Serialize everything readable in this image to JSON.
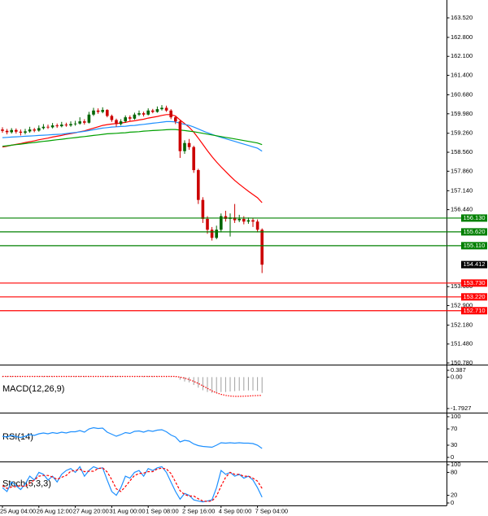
{
  "chart_data": [
    {
      "type": "candlestick",
      "categories": [
        "25 Aug 04:00",
        null,
        null,
        null,
        null,
        null,
        null,
        null,
        "26 Aug 12:00",
        null,
        null,
        null,
        null,
        null,
        null,
        null,
        "27 Aug 20:00",
        null,
        null,
        null,
        null,
        null,
        null,
        null,
        "31 Aug 00:00",
        null,
        null,
        null,
        null,
        null,
        null,
        null,
        "1 Sep 08:00",
        null,
        null,
        null,
        null,
        null,
        null,
        null,
        "2 Sep 16:00",
        null,
        null,
        null,
        null,
        null,
        null,
        null,
        "4 Sep 00:00",
        null,
        null,
        null,
        null,
        null,
        null,
        null,
        "7 Sep 04:00",
        null
      ],
      "open": [
        159.4,
        159.35,
        159.3,
        159.38,
        159.32,
        159.28,
        159.33,
        159.4,
        159.36,
        159.45,
        159.5,
        159.48,
        159.55,
        159.52,
        159.58,
        159.55,
        159.6,
        159.62,
        159.7,
        159.65,
        159.95,
        160.1,
        160.05,
        160.12,
        159.9,
        159.75,
        159.6,
        159.7,
        159.85,
        159.8,
        159.95,
        160.0,
        159.95,
        160.1,
        160.05,
        160.15,
        160.2,
        160.1,
        159.85,
        159.7,
        158.6,
        158.9,
        158.75,
        157.9,
        156.8,
        156.1,
        155.7,
        155.4,
        155.7,
        156.2,
        156.1,
        156.15,
        156.05,
        156.1,
        156.0,
        156.05,
        156.0,
        155.7
      ],
      "high": [
        159.48,
        159.42,
        159.45,
        159.44,
        159.4,
        159.42,
        159.5,
        159.46,
        159.55,
        159.6,
        159.58,
        159.64,
        159.62,
        159.68,
        159.65,
        159.7,
        159.72,
        159.85,
        159.78,
        160.05,
        160.2,
        160.18,
        160.22,
        160.15,
        159.95,
        159.8,
        159.78,
        159.92,
        159.92,
        160.02,
        160.1,
        160.06,
        160.18,
        160.16,
        160.25,
        160.3,
        160.28,
        160.15,
        159.9,
        159.75,
        159.0,
        159.05,
        158.8,
        157.95,
        156.9,
        156.2,
        155.8,
        155.85,
        156.3,
        156.4,
        156.3,
        156.65,
        156.25,
        156.2,
        156.15,
        156.12,
        156.08,
        155.75
      ],
      "low": [
        159.28,
        159.22,
        159.25,
        159.25,
        159.18,
        159.22,
        159.28,
        159.3,
        159.32,
        159.4,
        159.42,
        159.44,
        159.46,
        159.48,
        159.5,
        159.5,
        159.54,
        159.58,
        159.58,
        159.62,
        159.9,
        159.98,
        160.0,
        159.85,
        159.68,
        159.5,
        159.55,
        159.65,
        159.72,
        159.76,
        159.9,
        159.88,
        159.92,
        160.0,
        160.02,
        160.1,
        160.05,
        159.78,
        159.6,
        158.35,
        158.5,
        158.65,
        157.8,
        156.65,
        155.95,
        155.55,
        155.3,
        155.35,
        155.6,
        156.0,
        155.45,
        155.95,
        155.98,
        155.9,
        155.92,
        155.8,
        155.6,
        154.1
      ],
      "close": [
        159.35,
        159.3,
        159.38,
        159.32,
        159.28,
        159.33,
        159.4,
        159.36,
        159.45,
        159.5,
        159.48,
        159.55,
        159.52,
        159.58,
        159.55,
        159.6,
        159.62,
        159.7,
        159.65,
        159.95,
        160.1,
        160.05,
        160.12,
        159.9,
        159.75,
        159.6,
        159.7,
        159.85,
        159.8,
        159.95,
        160.0,
        159.95,
        160.1,
        160.05,
        160.15,
        160.2,
        160.1,
        159.85,
        159.7,
        158.6,
        158.9,
        158.75,
        157.9,
        156.8,
        156.1,
        155.7,
        155.4,
        155.7,
        156.2,
        156.1,
        156.15,
        156.05,
        156.1,
        156.0,
        156.05,
        156.0,
        155.7,
        154.41
      ],
      "up_color": "#006400",
      "down_color": "#cc0000",
      "series": [
        {
          "color": "#ff0000",
          "values": [
            158.75,
            158.78,
            158.82,
            158.85,
            158.88,
            158.92,
            158.95,
            158.98,
            159.02,
            159.05,
            159.08,
            159.12,
            159.15,
            159.18,
            159.22,
            159.25,
            159.28,
            159.32,
            159.35,
            159.4,
            159.45,
            159.5,
            159.55,
            159.58,
            159.6,
            159.62,
            159.64,
            159.66,
            159.7,
            159.72,
            159.75,
            159.78,
            159.82,
            159.85,
            159.88,
            159.92,
            159.95,
            159.95,
            159.9,
            159.75,
            159.62,
            159.48,
            159.3,
            159.08,
            158.85,
            158.62,
            158.4,
            158.2,
            158.02,
            157.85,
            157.68,
            157.52,
            157.38,
            157.25,
            157.12,
            157.0,
            156.88,
            156.7
          ]
        },
        {
          "color": "#1e90ff",
          "values": [
            159.1,
            159.11,
            159.12,
            159.13,
            159.14,
            159.15,
            159.16,
            159.17,
            159.18,
            159.19,
            159.2,
            159.21,
            159.22,
            159.23,
            159.25,
            159.27,
            159.29,
            159.31,
            159.33,
            159.36,
            159.39,
            159.42,
            159.45,
            159.47,
            159.49,
            159.5,
            159.51,
            159.52,
            159.54,
            159.55,
            159.57,
            159.59,
            159.61,
            159.63,
            159.65,
            159.67,
            159.69,
            159.69,
            159.68,
            159.63,
            159.59,
            159.55,
            159.49,
            159.42,
            159.35,
            159.28,
            159.22,
            159.16,
            159.11,
            159.06,
            159.01,
            158.96,
            158.91,
            158.86,
            158.81,
            158.76,
            158.71,
            158.6
          ]
        },
        {
          "color": "#00a000",
          "values": [
            158.78,
            158.8,
            158.82,
            158.84,
            158.86,
            158.88,
            158.9,
            158.92,
            158.94,
            158.96,
            158.98,
            159.0,
            159.02,
            159.04,
            159.06,
            159.08,
            159.1,
            159.12,
            159.14,
            159.16,
            159.18,
            159.2,
            159.22,
            159.24,
            159.25,
            159.26,
            159.27,
            159.28,
            159.3,
            159.31,
            159.32,
            159.34,
            159.35,
            159.36,
            159.37,
            159.38,
            159.39,
            159.4,
            159.4,
            159.38,
            159.36,
            159.34,
            159.32,
            159.29,
            159.26,
            159.23,
            159.2,
            159.17,
            159.14,
            159.11,
            159.08,
            159.05,
            159.02,
            158.99,
            158.96,
            158.93,
            158.9,
            158.84
          ]
        }
      ],
      "levels": [
        {
          "value": 156.13,
          "label": "156.130",
          "color": "#008000"
        },
        {
          "value": 155.62,
          "label": "155.620",
          "color": "#008000"
        },
        {
          "value": 155.11,
          "label": "155.110",
          "color": "#008000"
        },
        {
          "value": 153.73,
          "label": "153.730",
          "color": "#ff0000"
        },
        {
          "value": 153.22,
          "label": "153.220",
          "color": "#ff0000"
        },
        {
          "value": 152.71,
          "label": "152.710",
          "color": "#ff0000"
        }
      ],
      "last_price": 154.412,
      "last_price_color": "#000000",
      "ylim": [
        150.72,
        164.12
      ],
      "yticks": [
        {
          "value": 163.52,
          "label": "163.520"
        },
        {
          "value": 162.8,
          "label": "162.800"
        },
        {
          "value": 162.1,
          "label": "162.100"
        },
        {
          "value": 161.4,
          "label": "161.400"
        },
        {
          "value": 160.68,
          "label": "160.680"
        },
        {
          "value": 159.98,
          "label": "159.980"
        },
        {
          "value": 159.26,
          "label": "159.260"
        },
        {
          "value": 158.56,
          "label": "158.560"
        },
        {
          "value": 157.86,
          "label": "157.860"
        },
        {
          "value": 157.14,
          "label": "157.140"
        },
        {
          "value": 156.44,
          "label": "156.440"
        },
        {
          "value": 153.6,
          "label": "153.600"
        },
        {
          "value": 152.9,
          "label": "152.900"
        },
        {
          "value": 152.18,
          "label": "152.180"
        },
        {
          "value": 151.48,
          "label": "151.480"
        },
        {
          "value": 150.78,
          "label": "150.780"
        }
      ]
    },
    {
      "type": "macd",
      "title": "MACD(12,26,9)",
      "values": [
        0.05,
        0.05,
        0.05,
        0.05,
        0.05,
        0.05,
        0.05,
        0.05,
        0.05,
        0.05,
        0.05,
        0.05,
        0.05,
        0.05,
        0.05,
        0.05,
        0.05,
        0.05,
        0.05,
        0.05,
        0.05,
        0.05,
        0.05,
        0.05,
        0.05,
        0.05,
        0.05,
        0.05,
        0.05,
        0.05,
        0.05,
        0.05,
        0.05,
        0.05,
        0.05,
        0.05,
        0.05,
        0.05,
        0.03,
        -0.15,
        -0.25,
        -0.3,
        -0.45,
        -0.6,
        -0.75,
        -0.85,
        -0.9,
        -0.9,
        -0.85,
        -0.85,
        -0.82,
        -0.8,
        -0.78,
        -0.77,
        -0.76,
        -0.76,
        -0.78,
        -0.9
      ],
      "hist_color": "#a0a0a0",
      "series": [
        {
          "color": "#ff0000",
          "style": "dotted",
          "values": [
            0.04,
            0.04,
            0.04,
            0.04,
            0.04,
            0.04,
            0.04,
            0.04,
            0.04,
            0.04,
            0.04,
            0.04,
            0.04,
            0.04,
            0.04,
            0.04,
            0.04,
            0.04,
            0.04,
            0.04,
            0.04,
            0.04,
            0.04,
            0.04,
            0.04,
            0.04,
            0.04,
            0.04,
            0.04,
            0.04,
            0.04,
            0.04,
            0.04,
            0.04,
            0.04,
            0.04,
            0.04,
            0.04,
            0.04,
            0.0,
            -0.06,
            -0.14,
            -0.24,
            -0.36,
            -0.5,
            -0.64,
            -0.78,
            -0.9,
            -0.98,
            -1.04,
            -1.08,
            -1.1,
            -1.1,
            -1.09,
            -1.08,
            -1.06,
            -1.05,
            -1.04
          ]
        }
      ],
      "ylim": [
        -1.98,
        0.62
      ],
      "yticks": [
        0.387,
        {
          "value": 0,
          "label": "0.00"
        },
        -1.7927
      ]
    },
    {
      "type": "line",
      "title": "RSI(14)",
      "series": [
        {
          "color": "#1e90ff",
          "style": "solid",
          "values": [
            52,
            50,
            54,
            51,
            49,
            52,
            56,
            54,
            58,
            60,
            58,
            61,
            59,
            62,
            60,
            63,
            63,
            66,
            62,
            70,
            73,
            71,
            72,
            62,
            57,
            52,
            56,
            61,
            59,
            64,
            65,
            62,
            66,
            64,
            67,
            68,
            63,
            55,
            50,
            38,
            42,
            40,
            33,
            29,
            27,
            26,
            25,
            30,
            36,
            35,
            36,
            35,
            36,
            35,
            35,
            34,
            30,
            22
          ]
        }
      ],
      "ylim": [
        -8,
        108
      ],
      "yticks": [
        100,
        70,
        30,
        0
      ]
    },
    {
      "type": "line",
      "title": "Stoch(5,3,3)",
      "series": [
        {
          "color": "#1e90ff",
          "style": "solid",
          "values": [
            40,
            30,
            55,
            45,
            35,
            50,
            70,
            60,
            80,
            75,
            60,
            70,
            55,
            75,
            85,
            90,
            80,
            95,
            70,
            85,
            95,
            90,
            92,
            60,
            30,
            20,
            40,
            70,
            65,
            80,
            85,
            70,
            90,
            85,
            92,
            95,
            80,
            55,
            30,
            10,
            25,
            20,
            8,
            5,
            3,
            5,
            8,
            40,
            85,
            75,
            80,
            70,
            75,
            65,
            70,
            60,
            40,
            15
          ]
        },
        {
          "color": "#ff0000",
          "style": "dashed",
          "values": [
            45,
            38,
            42,
            43,
            45,
            43,
            52,
            60,
            70,
            72,
            72,
            68,
            62,
            67,
            72,
            83,
            85,
            88,
            82,
            83,
            83,
            90,
            92,
            81,
            61,
            37,
            30,
            43,
            58,
            72,
            77,
            78,
            82,
            82,
            89,
            91,
            89,
            77,
            55,
            32,
            22,
            18,
            18,
            11,
            5,
            4,
            5,
            18,
            44,
            67,
            80,
            75,
            75,
            70,
            70,
            65,
            57,
            38
          ]
        }
      ],
      "ylim": [
        -6.4,
        106.4
      ],
      "yticks": [
        100,
        80,
        20,
        0
      ]
    }
  ]
}
